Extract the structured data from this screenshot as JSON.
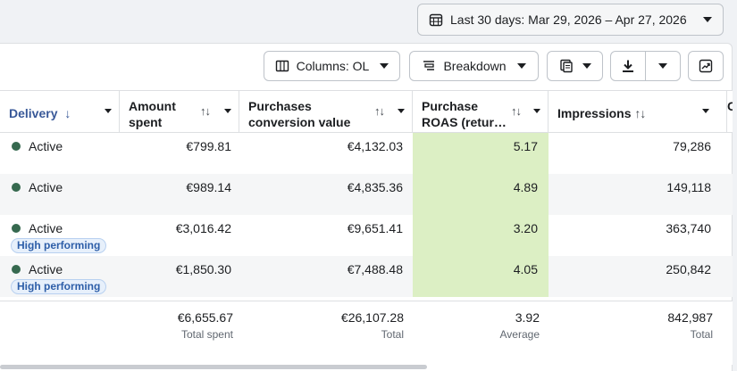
{
  "date_range": {
    "label": "Last 30 days: Mar 29, 2026 – Apr 27, 2026"
  },
  "toolbar": {
    "columns_label": "Columns: OL",
    "breakdown_label": "Breakdown"
  },
  "headers": {
    "delivery": "Delivery",
    "delivery_arrow": "↓",
    "amount_spent_1": "Amount",
    "amount_spent_2": "spent",
    "purchases_value_1": "Purchases",
    "purchases_value_2": "conversion value",
    "roas_1": "Purchase",
    "roas_2": "ROAS (retur…",
    "impressions": "Impressions",
    "sort_glyph": "↑↓",
    "partial_next": "C"
  },
  "rows": [
    {
      "status": "Active",
      "badge": "",
      "amount_spent": "€799.81",
      "purchases_value": "€4,132.03",
      "roas": "5.17",
      "impressions": "79,286"
    },
    {
      "status": "Active",
      "badge": "",
      "amount_spent": "€989.14",
      "purchases_value": "€4,835.36",
      "roas": "4.89",
      "impressions": "149,118"
    },
    {
      "status": "Active",
      "badge": "High performing",
      "amount_spent": "€3,016.42",
      "purchases_value": "€9,651.41",
      "roas": "3.20",
      "impressions": "363,740"
    },
    {
      "status": "Active",
      "badge": "High performing",
      "amount_spent": "€1,850.30",
      "purchases_value": "€7,488.48",
      "roas": "4.05",
      "impressions": "250,842"
    }
  ],
  "totals": {
    "amount_spent": "€6,655.67",
    "amount_spent_label": "Total spent",
    "purchases_value": "€26,107.28",
    "purchases_value_label": "Total",
    "roas": "3.92",
    "roas_label": "Average",
    "impressions": "842,987",
    "impressions_label": "Total"
  },
  "colors": {
    "active_dot": "#36694f",
    "roas_highlight": "#dcefc4",
    "link_blue": "#385898"
  }
}
